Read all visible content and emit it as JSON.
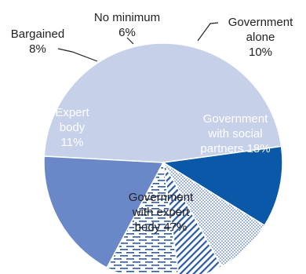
{
  "chart_data": {
    "type": "pie",
    "title": "",
    "slices": [
      {
        "name": "Government with expert body",
        "value": 47,
        "label_lines": [
          "Government",
          "with expert",
          "body 47%"
        ],
        "color": "#c6d0e9",
        "pattern": "solid",
        "label_color": "#222222"
      },
      {
        "name": "Expert body",
        "value": 11,
        "label_lines": [
          "Expert",
          "body",
          "11%"
        ],
        "color": "#0a59a8",
        "pattern": "solid",
        "label_color": "#ffffff"
      },
      {
        "name": "Bargained",
        "value": 8,
        "label_lines": [
          "Bargained",
          "8%"
        ],
        "color": "#2a5aa8",
        "pattern": "dots",
        "label_color": "#222222"
      },
      {
        "name": "No minimum",
        "value": 6,
        "label_lines": [
          "No minimum",
          "6%"
        ],
        "color": "#2a5aa8",
        "pattern": "diagonal",
        "label_color": "#222222"
      },
      {
        "name": "Government alone",
        "value": 10,
        "label_lines": [
          "Government",
          "alone",
          "10%"
        ],
        "color": "#2a5aa8",
        "pattern": "dashes",
        "label_color": "#222222"
      },
      {
        "name": "Government with social partners",
        "value": 18,
        "label_lines": [
          "Government",
          "with social",
          "partners 18%"
        ],
        "color": "#6a87c8",
        "pattern": "solid",
        "label_color": "#ffffff"
      }
    ]
  }
}
